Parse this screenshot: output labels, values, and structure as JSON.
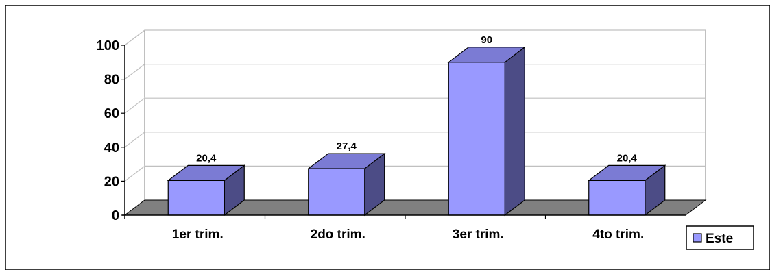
{
  "chart_data": {
    "type": "bar",
    "title": "",
    "xlabel": "",
    "ylabel": "",
    "categories": [
      "1er trim.",
      "2do trim.",
      "3er trim.",
      "4to trim."
    ],
    "series": [
      {
        "name": "Este",
        "values": [
          20.4,
          27.4,
          90,
          20.4
        ],
        "value_labels": [
          "20,4",
          "27,4",
          "90",
          "20,4"
        ]
      }
    ],
    "ylim": [
      0,
      100
    ],
    "yticks": [
      0,
      20,
      40,
      60,
      80,
      100
    ],
    "grid": true,
    "legend": "right",
    "style": "3d",
    "colors": {
      "bar_front": "#9999ff",
      "bar_side": "#4c4c86",
      "bar_top": "#7b7bd4",
      "floor": "#808080",
      "wall": "#ffffff",
      "gridline": "#c0c0c0"
    }
  }
}
